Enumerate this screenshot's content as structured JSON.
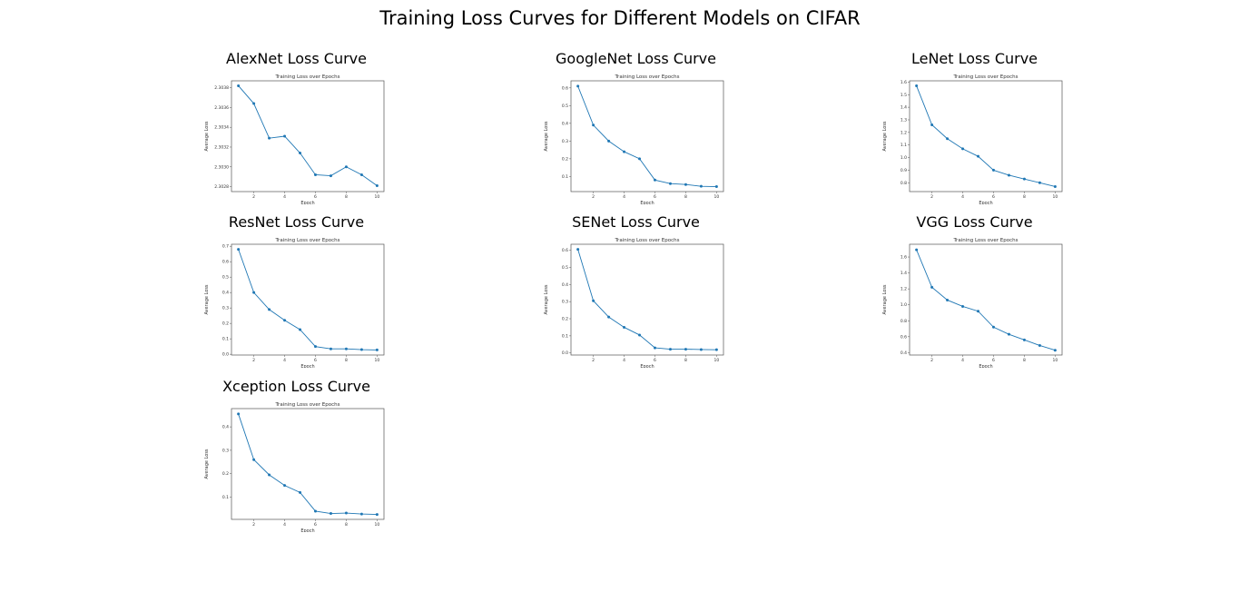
{
  "figure": {
    "title": "Training Loss Curves for Different Models on CIFAR"
  },
  "style": {
    "line_color": "#1f77b4"
  },
  "chart_data": [
    {
      "type": "line",
      "panel_title": "AlexNet Loss Curve",
      "title": "Training Loss over Epochs",
      "xlabel": "Epoch",
      "ylabel": "Average Loss",
      "x": [
        1,
        2,
        3,
        4,
        5,
        6,
        7,
        8,
        9,
        10
      ],
      "y": [
        2.30382,
        2.30364,
        2.30329,
        2.30331,
        2.30314,
        2.30292,
        2.30291,
        2.303,
        2.30292,
        2.30281
      ],
      "xticks": [
        2,
        4,
        6,
        8,
        10
      ],
      "xtick_labels": [
        "2",
        "4",
        "6",
        "8",
        "10"
      ],
      "yticks": [
        2.3028,
        2.303,
        2.3032,
        2.3034,
        2.3036,
        2.3038
      ],
      "ytick_labels": [
        "2.3028",
        "2.3030",
        "2.3032",
        "2.3034",
        "2.3036",
        "2.3038"
      ],
      "xlim": [
        0.55,
        10.45
      ],
      "ylim": [
        2.30275,
        2.30387
      ]
    },
    {
      "type": "line",
      "panel_title": "GoogleNet Loss Curve",
      "title": "Training Loss over Epochs",
      "xlabel": "Epoch",
      "ylabel": "Average Loss",
      "x": [
        1,
        2,
        3,
        4,
        5,
        6,
        7,
        8,
        9,
        10
      ],
      "y": [
        0.61,
        0.39,
        0.3,
        0.24,
        0.2,
        0.08,
        0.06,
        0.055,
        0.045,
        0.043
      ],
      "xticks": [
        2,
        4,
        6,
        8,
        10
      ],
      "xtick_labels": [
        "2",
        "4",
        "6",
        "8",
        "10"
      ],
      "yticks": [
        0.1,
        0.2,
        0.3,
        0.4,
        0.5,
        0.6
      ],
      "ytick_labels": [
        "0.1",
        "0.2",
        "0.3",
        "0.4",
        "0.5",
        "0.6"
      ],
      "xlim": [
        0.55,
        10.45
      ],
      "ylim": [
        0.015,
        0.64
      ]
    },
    {
      "type": "line",
      "panel_title": "LeNet Loss Curve",
      "title": "Training Loss over Epochs",
      "xlabel": "Epoch",
      "ylabel": "Average Loss",
      "x": [
        1,
        2,
        3,
        4,
        5,
        6,
        7,
        8,
        9,
        10
      ],
      "y": [
        1.57,
        1.26,
        1.15,
        1.07,
        1.01,
        0.9,
        0.86,
        0.83,
        0.8,
        0.77
      ],
      "xticks": [
        2,
        4,
        6,
        8,
        10
      ],
      "xtick_labels": [
        "2",
        "4",
        "6",
        "8",
        "10"
      ],
      "yticks": [
        0.8,
        0.9,
        1.0,
        1.1,
        1.2,
        1.3,
        1.4,
        1.5,
        1.6
      ],
      "ytick_labels": [
        "0.8",
        "0.9",
        "1.0",
        "1.1",
        "1.2",
        "1.3",
        "1.4",
        "1.5",
        "1.6"
      ],
      "xlim": [
        0.55,
        10.45
      ],
      "ylim": [
        0.73,
        1.61
      ]
    },
    {
      "type": "line",
      "panel_title": "ResNet Loss Curve",
      "title": "Training Loss over Epochs",
      "xlabel": "Epoch",
      "ylabel": "Average Loss",
      "x": [
        1,
        2,
        3,
        4,
        5,
        6,
        7,
        8,
        9,
        10
      ],
      "y": [
        0.68,
        0.4,
        0.29,
        0.22,
        0.16,
        0.05,
        0.035,
        0.035,
        0.03,
        0.028
      ],
      "xticks": [
        2,
        4,
        6,
        8,
        10
      ],
      "xtick_labels": [
        "2",
        "4",
        "6",
        "8",
        "10"
      ],
      "yticks": [
        0.0,
        0.1,
        0.2,
        0.3,
        0.4,
        0.5,
        0.6,
        0.7
      ],
      "ytick_labels": [
        "0.0",
        "0.1",
        "0.2",
        "0.3",
        "0.4",
        "0.5",
        "0.6",
        "0.7"
      ],
      "xlim": [
        0.55,
        10.45
      ],
      "ylim": [
        -0.005,
        0.713
      ]
    },
    {
      "type": "line",
      "panel_title": "SENet Loss Curve",
      "title": "Training Loss over Epochs",
      "xlabel": "Epoch",
      "ylabel": "Average Loss",
      "x": [
        1,
        2,
        3,
        4,
        5,
        6,
        7,
        8,
        9,
        10
      ],
      "y": [
        0.605,
        0.305,
        0.21,
        0.15,
        0.105,
        0.03,
        0.022,
        0.022,
        0.02,
        0.019
      ],
      "xticks": [
        2,
        4,
        6,
        8,
        10
      ],
      "xtick_labels": [
        "2",
        "4",
        "6",
        "8",
        "10"
      ],
      "yticks": [
        0.0,
        0.1,
        0.2,
        0.3,
        0.4,
        0.5,
        0.6
      ],
      "ytick_labels": [
        "0.0",
        "0.1",
        "0.2",
        "0.3",
        "0.4",
        "0.5",
        "0.6"
      ],
      "xlim": [
        0.55,
        10.45
      ],
      "ylim": [
        -0.012,
        0.635
      ]
    },
    {
      "type": "line",
      "panel_title": "VGG Loss Curve",
      "title": "Training Loss over Epochs",
      "xlabel": "Epoch",
      "ylabel": "Average Loss",
      "x": [
        1,
        2,
        3,
        4,
        5,
        6,
        7,
        8,
        9,
        10
      ],
      "y": [
        1.69,
        1.22,
        1.06,
        0.98,
        0.92,
        0.72,
        0.63,
        0.56,
        0.49,
        0.43
      ],
      "xticks": [
        2,
        4,
        6,
        8,
        10
      ],
      "xtick_labels": [
        "2",
        "4",
        "6",
        "8",
        "10"
      ],
      "yticks": [
        0.4,
        0.6,
        0.8,
        1.0,
        1.2,
        1.4,
        1.6
      ],
      "ytick_labels": [
        "0.4",
        "0.6",
        "0.8",
        "1.0",
        "1.2",
        "1.4",
        "1.6"
      ],
      "xlim": [
        0.55,
        10.45
      ],
      "ylim": [
        0.37,
        1.76
      ]
    },
    {
      "type": "line",
      "panel_title": "Xception Loss Curve",
      "title": "Training Loss over Epochs",
      "xlabel": "Epoch",
      "ylabel": "Average Loss",
      "x": [
        1,
        2,
        3,
        4,
        5,
        6,
        7,
        8,
        9,
        10
      ],
      "y": [
        0.455,
        0.26,
        0.195,
        0.15,
        0.12,
        0.04,
        0.03,
        0.032,
        0.028,
        0.026
      ],
      "xticks": [
        2,
        4,
        6,
        8,
        10
      ],
      "xtick_labels": [
        "2",
        "4",
        "6",
        "8",
        "10"
      ],
      "yticks": [
        0.1,
        0.2,
        0.3,
        0.4
      ],
      "ytick_labels": [
        "0.1",
        "0.2",
        "0.3",
        "0.4"
      ],
      "xlim": [
        0.55,
        10.45
      ],
      "ylim": [
        0.005,
        0.478
      ]
    }
  ]
}
